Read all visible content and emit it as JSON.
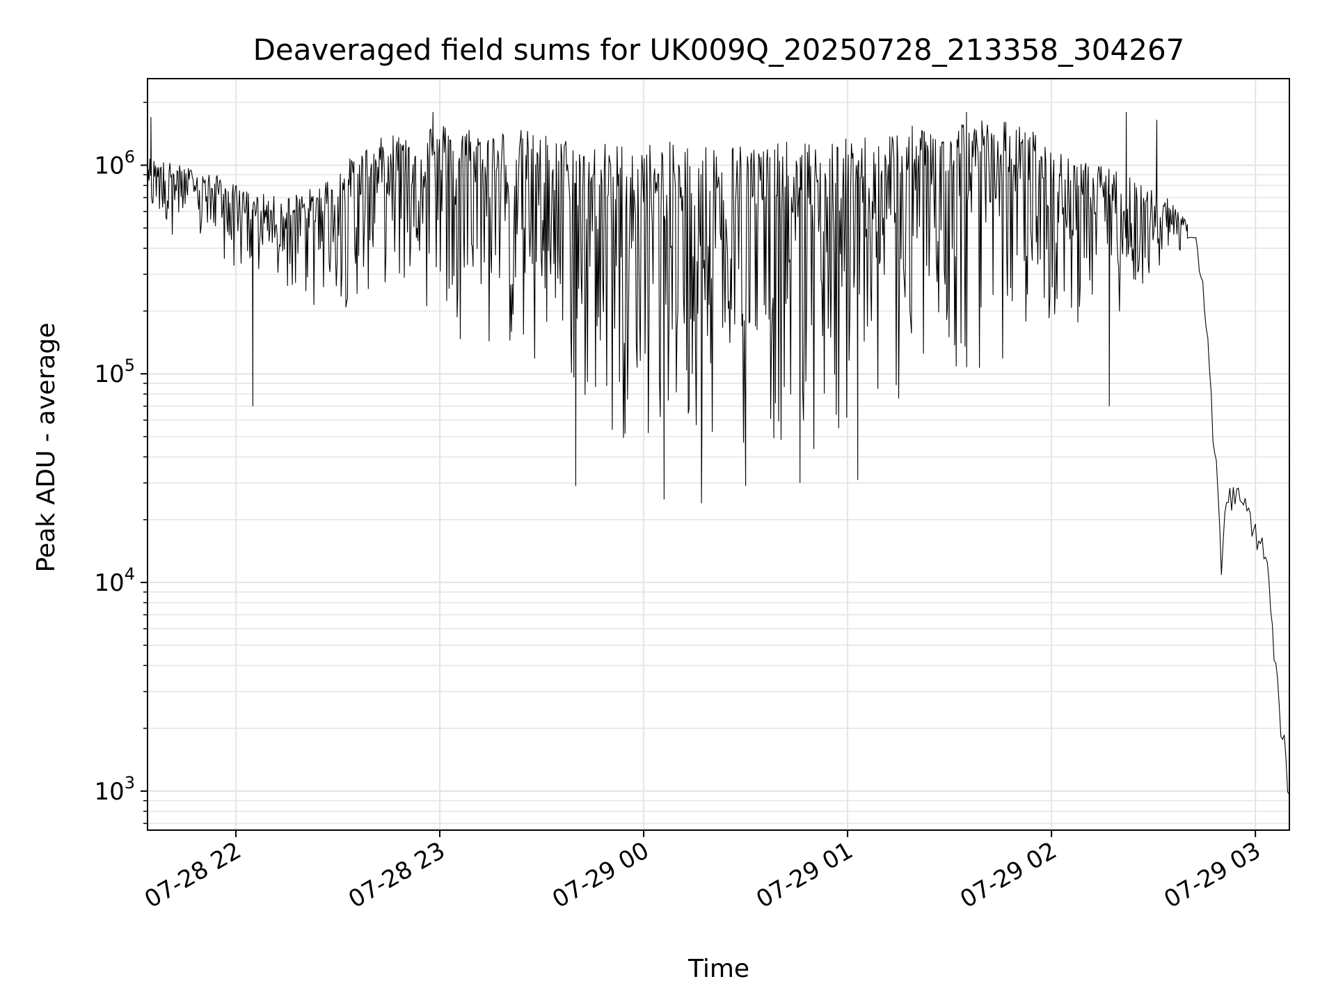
{
  "chart_data": {
    "type": "line",
    "title": "Deaveraged field sums for UK009Q_20250728_213358_304267",
    "xlabel": "Time",
    "ylabel": "Peak ADU - average",
    "yscale": "log",
    "ylim": [
      650,
      2600000
    ],
    "xlim": [
      "2025-07-28 21:34",
      "2025-07-29 03:10"
    ],
    "grid": true,
    "line_color": "#000000",
    "grid_color": "#e5e5e5",
    "x_ticks": [
      {
        "value": "2025-07-28 22:00",
        "label": "07-28 22"
      },
      {
        "value": "2025-07-28 23:00",
        "label": "07-28 23"
      },
      {
        "value": "2025-07-29 00:00",
        "label": "07-29 00"
      },
      {
        "value": "2025-07-29 01:00",
        "label": "07-29 01"
      },
      {
        "value": "2025-07-29 02:00",
        "label": "07-29 02"
      },
      {
        "value": "2025-07-29 03:00",
        "label": "07-29 03"
      }
    ],
    "y_ticks": [
      {
        "value": 1000,
        "base": "10",
        "exp": "3"
      },
      {
        "value": 10000,
        "base": "10",
        "exp": "4"
      },
      {
        "value": 100000,
        "base": "10",
        "exp": "5"
      },
      {
        "value": 1000000,
        "base": "10",
        "exp": "6"
      }
    ],
    "series": [
      {
        "envelope": [
          {
            "t": "2025-07-28 21:34",
            "low": 550000,
            "high": 1100000
          },
          {
            "t": "2025-07-28 21:44",
            "low": 420000,
            "high": 1000000
          },
          {
            "t": "2025-07-28 21:54",
            "low": 350000,
            "high": 900000
          },
          {
            "t": "2025-07-28 22:04",
            "low": 260000,
            "high": 750000
          },
          {
            "t": "2025-07-28 22:14",
            "low": 230000,
            "high": 700000
          },
          {
            "t": "2025-07-28 22:24",
            "low": 180000,
            "high": 800000
          },
          {
            "t": "2025-07-28 22:34",
            "low": 200000,
            "high": 1100000
          },
          {
            "t": "2025-07-28 22:44",
            "low": 250000,
            "high": 1400000
          },
          {
            "t": "2025-07-28 22:54",
            "low": 200000,
            "high": 1600000
          },
          {
            "t": "2025-07-28 23:04",
            "low": 150000,
            "high": 1600000
          },
          {
            "t": "2025-07-28 23:14",
            "low": 120000,
            "high": 1500000
          },
          {
            "t": "2025-07-28 23:24",
            "low": 90000,
            "high": 1500000
          },
          {
            "t": "2025-07-28 23:34",
            "low": 65000,
            "high": 1400000
          },
          {
            "t": "2025-07-28 23:44",
            "low": 50000,
            "high": 1300000
          },
          {
            "t": "2025-07-28 23:54",
            "low": 45000,
            "high": 1300000
          },
          {
            "t": "2025-07-29 00:04",
            "low": 40000,
            "high": 1300000
          },
          {
            "t": "2025-07-29 00:14",
            "low": 38000,
            "high": 1300000
          },
          {
            "t": "2025-07-29 00:24",
            "low": 40000,
            "high": 1300000
          },
          {
            "t": "2025-07-29 00:34",
            "low": 42000,
            "high": 1300000
          },
          {
            "t": "2025-07-29 00:44",
            "low": 38000,
            "high": 1300000
          },
          {
            "t": "2025-07-29 00:54",
            "low": 40000,
            "high": 1300000
          },
          {
            "t": "2025-07-29 01:04",
            "low": 50000,
            "high": 1400000
          },
          {
            "t": "2025-07-29 01:14",
            "low": 60000,
            "high": 1500000
          },
          {
            "t": "2025-07-29 01:24",
            "low": 70000,
            "high": 1600000
          },
          {
            "t": "2025-07-29 01:34",
            "low": 80000,
            "high": 1700000
          },
          {
            "t": "2025-07-29 01:44",
            "low": 100000,
            "high": 1700000
          },
          {
            "t": "2025-07-29 01:54",
            "low": 130000,
            "high": 1500000
          },
          {
            "t": "2025-07-29 02:04",
            "low": 160000,
            "high": 1100000
          },
          {
            "t": "2025-07-29 02:14",
            "low": 180000,
            "high": 1000000
          },
          {
            "t": "2025-07-29 02:24",
            "low": 200000,
            "high": 900000
          },
          {
            "t": "2025-07-29 02:34",
            "low": 300000,
            "high": 700000
          },
          {
            "t": "2025-07-29 02:40",
            "low": 380000,
            "high": 550000
          }
        ],
        "spikes": [
          {
            "t": "2025-07-28 21:35",
            "value": 1700000
          },
          {
            "t": "2025-07-28 22:05",
            "value": 70000
          },
          {
            "t": "2025-07-28 22:58",
            "value": 1800000
          },
          {
            "t": "2025-07-28 23:40",
            "value": 29000
          },
          {
            "t": "2025-07-29 00:06",
            "value": 25000
          },
          {
            "t": "2025-07-29 00:17",
            "value": 24000
          },
          {
            "t": "2025-07-29 00:30",
            "value": 29000
          },
          {
            "t": "2025-07-29 00:46",
            "value": 30000
          },
          {
            "t": "2025-07-29 01:03",
            "value": 31000
          },
          {
            "t": "2025-07-29 01:35",
            "value": 1800000
          },
          {
            "t": "2025-07-29 02:17",
            "value": 70000
          },
          {
            "t": "2025-07-29 02:22",
            "value": 1800000
          },
          {
            "t": "2025-07-29 02:31",
            "value": 1650000
          }
        ],
        "tail": [
          {
            "t": "2025-07-29 02:40",
            "value": 450000
          },
          {
            "t": "2025-07-29 02:42",
            "value": 450000
          },
          {
            "t": "2025-07-29 02:43",
            "value": 400000
          },
          {
            "t": "2025-07-29 02:44",
            "value": 280000
          },
          {
            "t": "2025-07-29 02:45",
            "value": 200000
          },
          {
            "t": "2025-07-29 02:46",
            "value": 150000
          },
          {
            "t": "2025-07-29 02:47",
            "value": 80000
          },
          {
            "t": "2025-07-29 02:48",
            "value": 40000
          },
          {
            "t": "2025-07-29 02:49",
            "value": 28000
          },
          {
            "t": "2025-07-29 02:50",
            "value": 11000
          },
          {
            "t": "2025-07-29 02:51",
            "value": 22000
          },
          {
            "t": "2025-07-29 02:52",
            "value": 26000
          },
          {
            "t": "2025-07-29 02:53",
            "value": 24000
          },
          {
            "t": "2025-07-29 02:54",
            "value": 27000
          },
          {
            "t": "2025-07-29 02:55",
            "value": 25000
          },
          {
            "t": "2025-07-29 02:56",
            "value": 22000
          },
          {
            "t": "2025-07-29 02:57",
            "value": 24000
          },
          {
            "t": "2025-07-29 02:58",
            "value": 21000
          },
          {
            "t": "2025-07-29 02:59",
            "value": 19000
          },
          {
            "t": "2025-07-29 03:00",
            "value": 17000
          },
          {
            "t": "2025-07-29 03:01",
            "value": 16000
          },
          {
            "t": "2025-07-29 03:02",
            "value": 15000
          },
          {
            "t": "2025-07-29 03:03",
            "value": 13000
          },
          {
            "t": "2025-07-29 03:04",
            "value": 10000
          },
          {
            "t": "2025-07-29 03:05",
            "value": 6000
          },
          {
            "t": "2025-07-29 03:06",
            "value": 4000
          },
          {
            "t": "2025-07-29 03:07",
            "value": 2500
          },
          {
            "t": "2025-07-29 03:08",
            "value": 1800
          },
          {
            "t": "2025-07-29 03:09",
            "value": 1400
          },
          {
            "t": "2025-07-29 03:10",
            "value": 950
          }
        ]
      }
    ]
  }
}
